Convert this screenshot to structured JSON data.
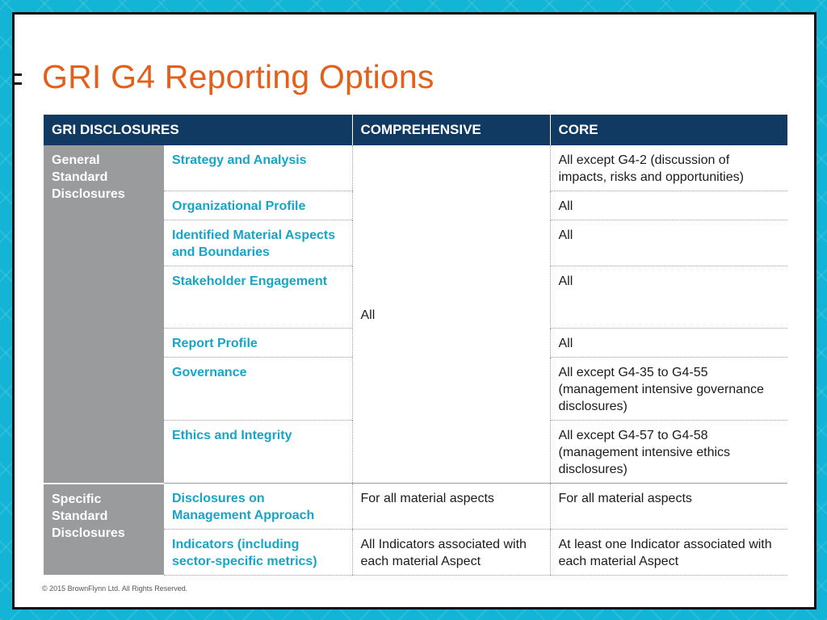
{
  "page": {
    "title": "GRI G4 Reporting Options",
    "footer": "© 2015 BrownFlynn Ltd. All Rights Reserved."
  },
  "table": {
    "headers": {
      "disclosures": "GRI DISCLOSURES",
      "comprehensive": "COMPREHENSIVE",
      "core": "CORE"
    },
    "general": {
      "group_label": "General Standard Disclosures",
      "comprehensive_all": "All",
      "rows": [
        {
          "topic": "Strategy and Analysis",
          "core": "All except G4-2 (discussion of impacts, risks and opportunities)"
        },
        {
          "topic": "Organizational Profile",
          "core": "All"
        },
        {
          "topic": "Identified Material Aspects and Boundaries",
          "core": "All"
        },
        {
          "topic": "Stakeholder Engagement",
          "core": "All"
        },
        {
          "topic": "Report Profile",
          "core": "All"
        },
        {
          "topic": "Governance",
          "core": "All except G4-35 to G4-55 (management intensive governance disclosures)"
        },
        {
          "topic": "Ethics and Integrity",
          "core": "All except G4-57 to G4-58 (management intensive ethics disclosures)"
        }
      ]
    },
    "specific": {
      "group_label": "Specific Standard Disclosures",
      "rows": [
        {
          "topic": "Disclosures on Management Approach",
          "comprehensive": "For all material aspects",
          "core": "For all material aspects"
        },
        {
          "topic": "Indicators (including sector-specific metrics)",
          "comprehensive": "All Indicators associated with each material Aspect",
          "core": "At least one Indicator associated with each material Aspect"
        }
      ]
    }
  }
}
